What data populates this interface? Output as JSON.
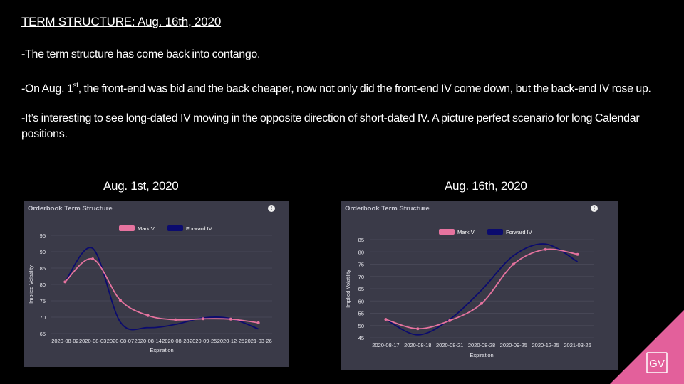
{
  "slide": {
    "title": "TERM STRUCTURE: Aug. 16th, 2020",
    "bullets": [
      "-The term structure has come back into contango.",
      "-It’s interesting to see long-dated IV moving in the opposite direction of short-dated IV. A picture perfect scenario for long Calendar positions."
    ],
    "bullet2": {
      "pre": "-On Aug. 1",
      "sup": "st",
      "post": ", the front-end was bid and the back cheaper, now not only did the front-end IV come down, but the back-end IV rose up."
    },
    "logo_text": "GV"
  },
  "colors": {
    "markiv": "#e6739f",
    "forward": "#0b0b6e",
    "panel": "#3a3a48",
    "corner": "#e3609b"
  },
  "chart_data": [
    {
      "caption": "Aug. 1st, 2020",
      "panel_title": "Orderbook Term Structure",
      "type": "line",
      "xlabel": "Expiration",
      "ylabel": "Implied Volatility",
      "ylim": [
        65,
        95
      ],
      "yticks": [
        65,
        70,
        75,
        80,
        85,
        90,
        95
      ],
      "categories": [
        "2020-08-02",
        "2020-08-03",
        "2020-08-07",
        "2020-08-14",
        "2020-08-28",
        "2020-09-25",
        "2020-12-25",
        "2021-03-26"
      ],
      "legend_position": "top-center",
      "grid": true,
      "series": [
        {
          "name": "MarkIV",
          "values": [
            80.8,
            87.8,
            75.2,
            70.5,
            69.2,
            69.5,
            69.4,
            68.3
          ]
        },
        {
          "name": "Forward IV",
          "values": [
            80.8,
            91.0,
            68.5,
            66.8,
            67.8,
            69.8,
            69.6,
            66.4
          ]
        }
      ]
    },
    {
      "caption": "Aug. 16th, 2020",
      "panel_title": "Orderbook Term Structure",
      "type": "line",
      "xlabel": "Expiration",
      "ylabel": "Implied Volatility",
      "ylim": [
        45,
        85
      ],
      "yticks": [
        45,
        50,
        55,
        60,
        65,
        70,
        75,
        80,
        85
      ],
      "categories": [
        "2020-08-17",
        "2020-08-18",
        "2020-08-21",
        "2020-08-28",
        "2020-09-25",
        "2020-12-25",
        "2021-03-26"
      ],
      "legend_position": "top-center",
      "grid": true,
      "series": [
        {
          "name": "MarkIV",
          "values": [
            52.5,
            48.7,
            52.0,
            59.0,
            75.0,
            81.0,
            79.0
          ]
        },
        {
          "name": "Forward IV",
          "values": [
            52.5,
            46.2,
            52.5,
            64.5,
            78.5,
            83.2,
            76.0
          ]
        }
      ]
    }
  ]
}
